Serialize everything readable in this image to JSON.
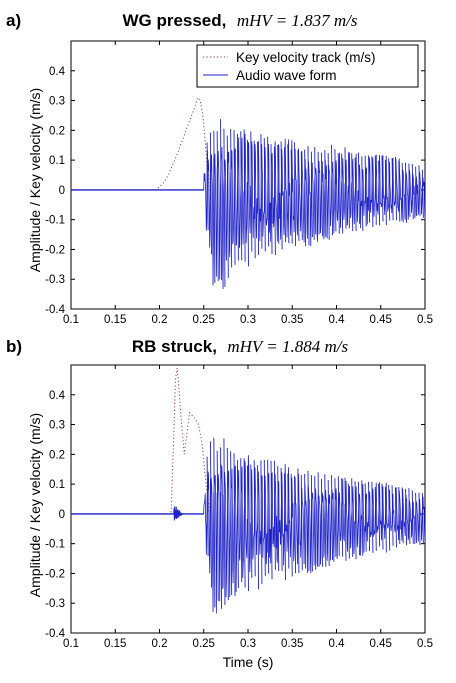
{
  "figure": {
    "xlabel": "Time (s)",
    "colors": {
      "audio": "#1f22c8",
      "velocity": "#a03040",
      "axes": "#000000"
    }
  },
  "chart_data": [
    {
      "type": "line",
      "panel_label": "a)",
      "title": "WG pressed, mHV = 1.837 m/s",
      "title_text": "WG pressed,",
      "title_math": "mHV = 1.837 m/s",
      "xlabel": "",
      "ylabel": "Amplitude / Key velocity (m/s)",
      "xlim": [
        0.1,
        0.5
      ],
      "ylim": [
        -0.4,
        0.5
      ],
      "xticks": [
        0.1,
        0.15,
        0.2,
        0.25,
        0.3,
        0.35,
        0.4,
        0.45,
        0.5
      ],
      "xtick_labels": [
        "0.1",
        "0.15",
        "0.2",
        "0.25",
        "0.3",
        "0.35",
        "0.4",
        "0.45",
        "0.5"
      ],
      "yticks": [
        -0.4,
        -0.3,
        -0.2,
        -0.1,
        0,
        0.1,
        0.2,
        0.3,
        0.4
      ],
      "ytick_labels": [
        "-0.4",
        "-0.3",
        "-0.2",
        "-0.1",
        "0",
        "0.1",
        "0.2",
        "0.3",
        "0.4"
      ],
      "grid": false,
      "legend_position": "top-right",
      "series": [
        {
          "name": "Key velocity track (m/s)",
          "style": "dotted",
          "color": "#a03040",
          "x": [
            0.1,
            0.195,
            0.2,
            0.205,
            0.21,
            0.215,
            0.22,
            0.225,
            0.23,
            0.235,
            0.24,
            0.243,
            0.246,
            0.249,
            0.252,
            0.256
          ],
          "y": [
            0,
            0,
            0.01,
            0.025,
            0.05,
            0.085,
            0.12,
            0.16,
            0.2,
            0.24,
            0.28,
            0.31,
            0.3,
            0.25,
            0.15,
            0
          ]
        },
        {
          "name": "Audio wave form",
          "style": "solid",
          "color": "#1f22c8",
          "waveform": {
            "onset": 0.25,
            "period": 0.0038,
            "envelope_x": [
              0.25,
              0.255,
              0.26,
              0.27,
              0.28,
              0.3,
              0.33,
              0.36,
              0.4,
              0.44,
              0.47,
              0.5
            ],
            "envelope_top": [
              0.06,
              0.22,
              0.23,
              0.24,
              0.22,
              0.2,
              0.18,
              0.16,
              0.15,
              0.12,
              0.11,
              0.08
            ],
            "envelope_bottom": [
              -0.05,
              -0.2,
              -0.32,
              -0.34,
              -0.3,
              -0.26,
              -0.22,
              -0.2,
              -0.16,
              -0.13,
              -0.12,
              -0.1
            ]
          }
        }
      ]
    },
    {
      "type": "line",
      "panel_label": "b)",
      "title": "RB struck, mHV = 1.884 m/s",
      "title_text": "RB struck,",
      "title_math": "mHV = 1.884 m/s",
      "xlabel": "Time (s)",
      "ylabel": "Amplitude / Key velocity (m/s)",
      "xlim": [
        0.1,
        0.5
      ],
      "ylim": [
        -0.4,
        0.5
      ],
      "xticks": [
        0.1,
        0.15,
        0.2,
        0.25,
        0.3,
        0.35,
        0.4,
        0.45,
        0.5
      ],
      "xtick_labels": [
        "0.1",
        "0.15",
        "0.2",
        "0.25",
        "0.3",
        "0.35",
        "0.4",
        "0.45",
        "0.5"
      ],
      "yticks": [
        -0.4,
        -0.3,
        -0.2,
        -0.1,
        0,
        0.1,
        0.2,
        0.3,
        0.4
      ],
      "ytick_labels": [
        "-0.4",
        "-0.3",
        "-0.2",
        "-0.1",
        "0",
        "0.1",
        "0.2",
        "0.3",
        "0.4"
      ],
      "grid": false,
      "legend_position": "none",
      "series": [
        {
          "name": "",
          "style": "dotted",
          "color": "#a03040",
          "x": [
            0.1,
            0.213,
            0.216,
            0.218,
            0.22,
            0.222,
            0.225,
            0.228,
            0.231,
            0.234,
            0.237,
            0.24,
            0.244,
            0.248,
            0.252,
            0.256
          ],
          "y": [
            0,
            0,
            0.25,
            0.45,
            0.49,
            0.42,
            0.3,
            0.2,
            0.27,
            0.34,
            0.33,
            0.32,
            0.3,
            0.24,
            0.12,
            0
          ]
        },
        {
          "name": "",
          "style": "solid",
          "color": "#1f22c8",
          "pre_burst": {
            "x": [
              0.216,
              0.226
            ],
            "amplitude": 0.035
          },
          "waveform": {
            "onset": 0.25,
            "period": 0.0038,
            "envelope_x": [
              0.25,
              0.255,
              0.26,
              0.27,
              0.28,
              0.3,
              0.33,
              0.36,
              0.4,
              0.44,
              0.47,
              0.5
            ],
            "envelope_top": [
              0.06,
              0.25,
              0.26,
              0.26,
              0.24,
              0.2,
              0.18,
              0.15,
              0.13,
              0.11,
              0.1,
              0.07
            ],
            "envelope_bottom": [
              -0.05,
              -0.2,
              -0.33,
              -0.34,
              -0.3,
              -0.27,
              -0.23,
              -0.21,
              -0.17,
              -0.14,
              -0.12,
              -0.1
            ]
          }
        }
      ]
    }
  ]
}
